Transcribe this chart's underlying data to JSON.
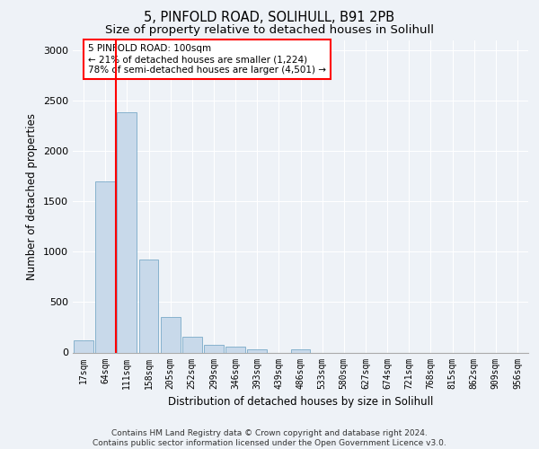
{
  "title_line1": "5, PINFOLD ROAD, SOLIHULL, B91 2PB",
  "title_line2": "Size of property relative to detached houses in Solihull",
  "xlabel": "Distribution of detached houses by size in Solihull",
  "ylabel": "Number of detached properties",
  "bar_labels": [
    "17sqm",
    "64sqm",
    "111sqm",
    "158sqm",
    "205sqm",
    "252sqm",
    "299sqm",
    "346sqm",
    "393sqm",
    "439sqm",
    "486sqm",
    "533sqm",
    "580sqm",
    "627sqm",
    "674sqm",
    "721sqm",
    "768sqm",
    "815sqm",
    "862sqm",
    "909sqm",
    "956sqm"
  ],
  "bar_values": [
    120,
    1700,
    2390,
    920,
    355,
    155,
    80,
    55,
    35,
    0,
    35,
    0,
    0,
    0,
    0,
    0,
    0,
    0,
    0,
    0,
    0
  ],
  "bar_color": "#c8d9ea",
  "bar_edgecolor": "#7aaac8",
  "vline_color": "red",
  "vline_x_index": 1.5,
  "annotation_text": "5 PINFOLD ROAD: 100sqm\n← 21% of detached houses are smaller (1,224)\n78% of semi-detached houses are larger (4,501) →",
  "annotation_box_facecolor": "white",
  "annotation_box_edgecolor": "red",
  "ylim": [
    0,
    3100
  ],
  "yticks": [
    0,
    500,
    1000,
    1500,
    2000,
    2500,
    3000
  ],
  "footer_line1": "Contains HM Land Registry data © Crown copyright and database right 2024.",
  "footer_line2": "Contains public sector information licensed under the Open Government Licence v3.0.",
  "background_color": "#eef2f7",
  "plot_bg_color": "#eef2f7",
  "grid_color": "#ffffff",
  "title_fontsize": 10.5,
  "subtitle_fontsize": 9.5,
  "ylabel_fontsize": 8.5,
  "xlabel_fontsize": 8.5,
  "tick_fontsize": 7,
  "annotation_fontsize": 7.5,
  "footer_fontsize": 6.5
}
